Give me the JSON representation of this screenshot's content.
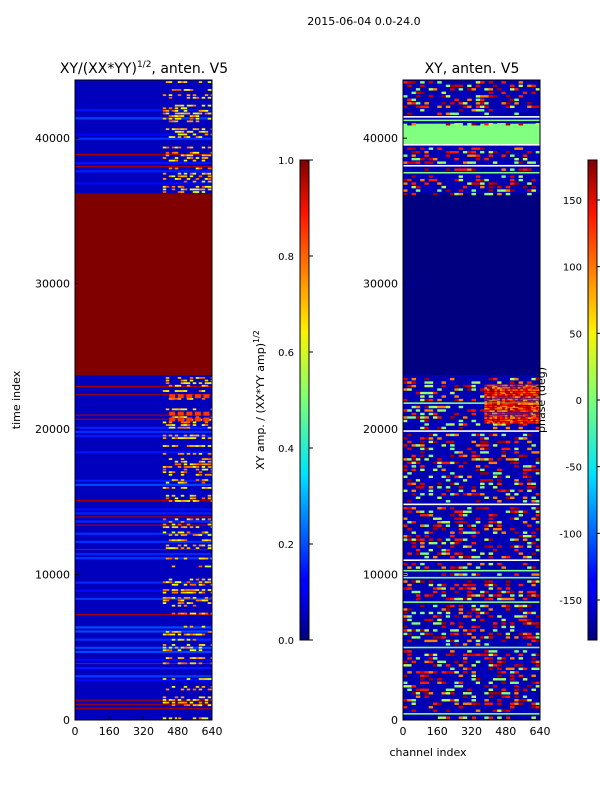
{
  "figure": {
    "suptitle": "2015-06-04 0.0-24.0"
  },
  "chart_data": [
    {
      "type": "heatmap",
      "title_main": "XY/(XX*YY)",
      "title_exp": "1/2",
      "title_tail": ", anten. V5",
      "xlabel": "",
      "ylabel": "time index",
      "xlim": [
        0,
        640
      ],
      "ylim": [
        0,
        44000
      ],
      "xticks": [
        "0",
        "160",
        "320",
        "480",
        "640"
      ],
      "yticks": [
        "0",
        "10000",
        "20000",
        "30000",
        "40000"
      ],
      "colorbar": {
        "label_main": "XY amp. / (XX*YY amp)",
        "label_exp": "1/2",
        "range": [
          0.0,
          1.0
        ],
        "ticks": [
          "0.0",
          "0.2",
          "0.4",
          "0.6",
          "0.8",
          "1.0"
        ],
        "colormap": "jet"
      },
      "regions": [
        {
          "t0": 23700,
          "t1": 36200,
          "value": 1.0,
          "description": "saturated block"
        }
      ]
    },
    {
      "type": "heatmap",
      "title_main": "XY, anten. V5",
      "xlabel": "channel index",
      "ylabel": "",
      "xlim": [
        0,
        640
      ],
      "ylim": [
        0,
        44000
      ],
      "xticks": [
        "0",
        "160",
        "320",
        "480",
        "640"
      ],
      "yticks": [
        "0",
        "10000",
        "20000",
        "30000",
        "40000"
      ],
      "colorbar": {
        "label_main": "phase (deg)",
        "range": [
          -180,
          180
        ],
        "ticks": [
          "-150",
          "-100",
          "-50",
          "0",
          "50",
          "100",
          "150"
        ],
        "colormap": "jet"
      },
      "regions": [
        {
          "t0": 23700,
          "t1": 36200,
          "value": -180,
          "description": "constant phase block"
        },
        {
          "t0": 39600,
          "t1": 41000,
          "value": 0,
          "description": "zero phase band"
        }
      ]
    }
  ]
}
